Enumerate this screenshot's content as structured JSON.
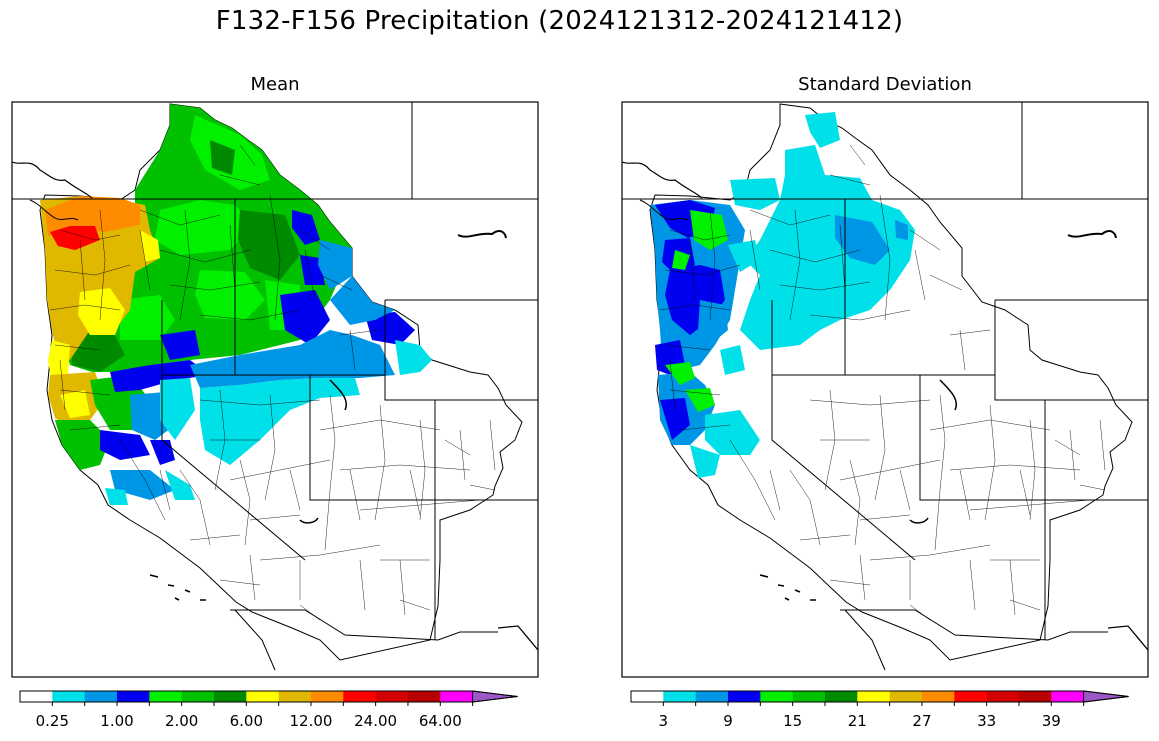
{
  "title": "F132-F156 Precipitation (2024121312-2024121412)",
  "panels": [
    {
      "title": "Mean",
      "colorbar": {
        "colors": [
          "#ffffff",
          "#00e0e8",
          "#0096e6",
          "#0000f0",
          "#00f000",
          "#00c000",
          "#008a00",
          "#ffff00",
          "#e0b800",
          "#ff8c00",
          "#ff0000",
          "#d20000",
          "#b80000",
          "#ff00ff",
          "#9b59c8"
        ],
        "tick_labels": [
          "0.25",
          "1.00",
          "2.00",
          "6.00",
          "12.00",
          "24.00",
          "64.00"
        ],
        "extend": "max"
      }
    },
    {
      "title": "Standard Deviation",
      "colorbar": {
        "colors": [
          "#ffffff",
          "#00e0e8",
          "#0096e6",
          "#0000f0",
          "#00f000",
          "#00c000",
          "#008a00",
          "#ffff00",
          "#e0b800",
          "#ff8c00",
          "#ff0000",
          "#d20000",
          "#b80000",
          "#ff00ff",
          "#9b59c8"
        ],
        "tick_labels": [
          "3",
          "9",
          "15",
          "21",
          "27",
          "33",
          "39"
        ],
        "extend": "max"
      }
    }
  ]
}
